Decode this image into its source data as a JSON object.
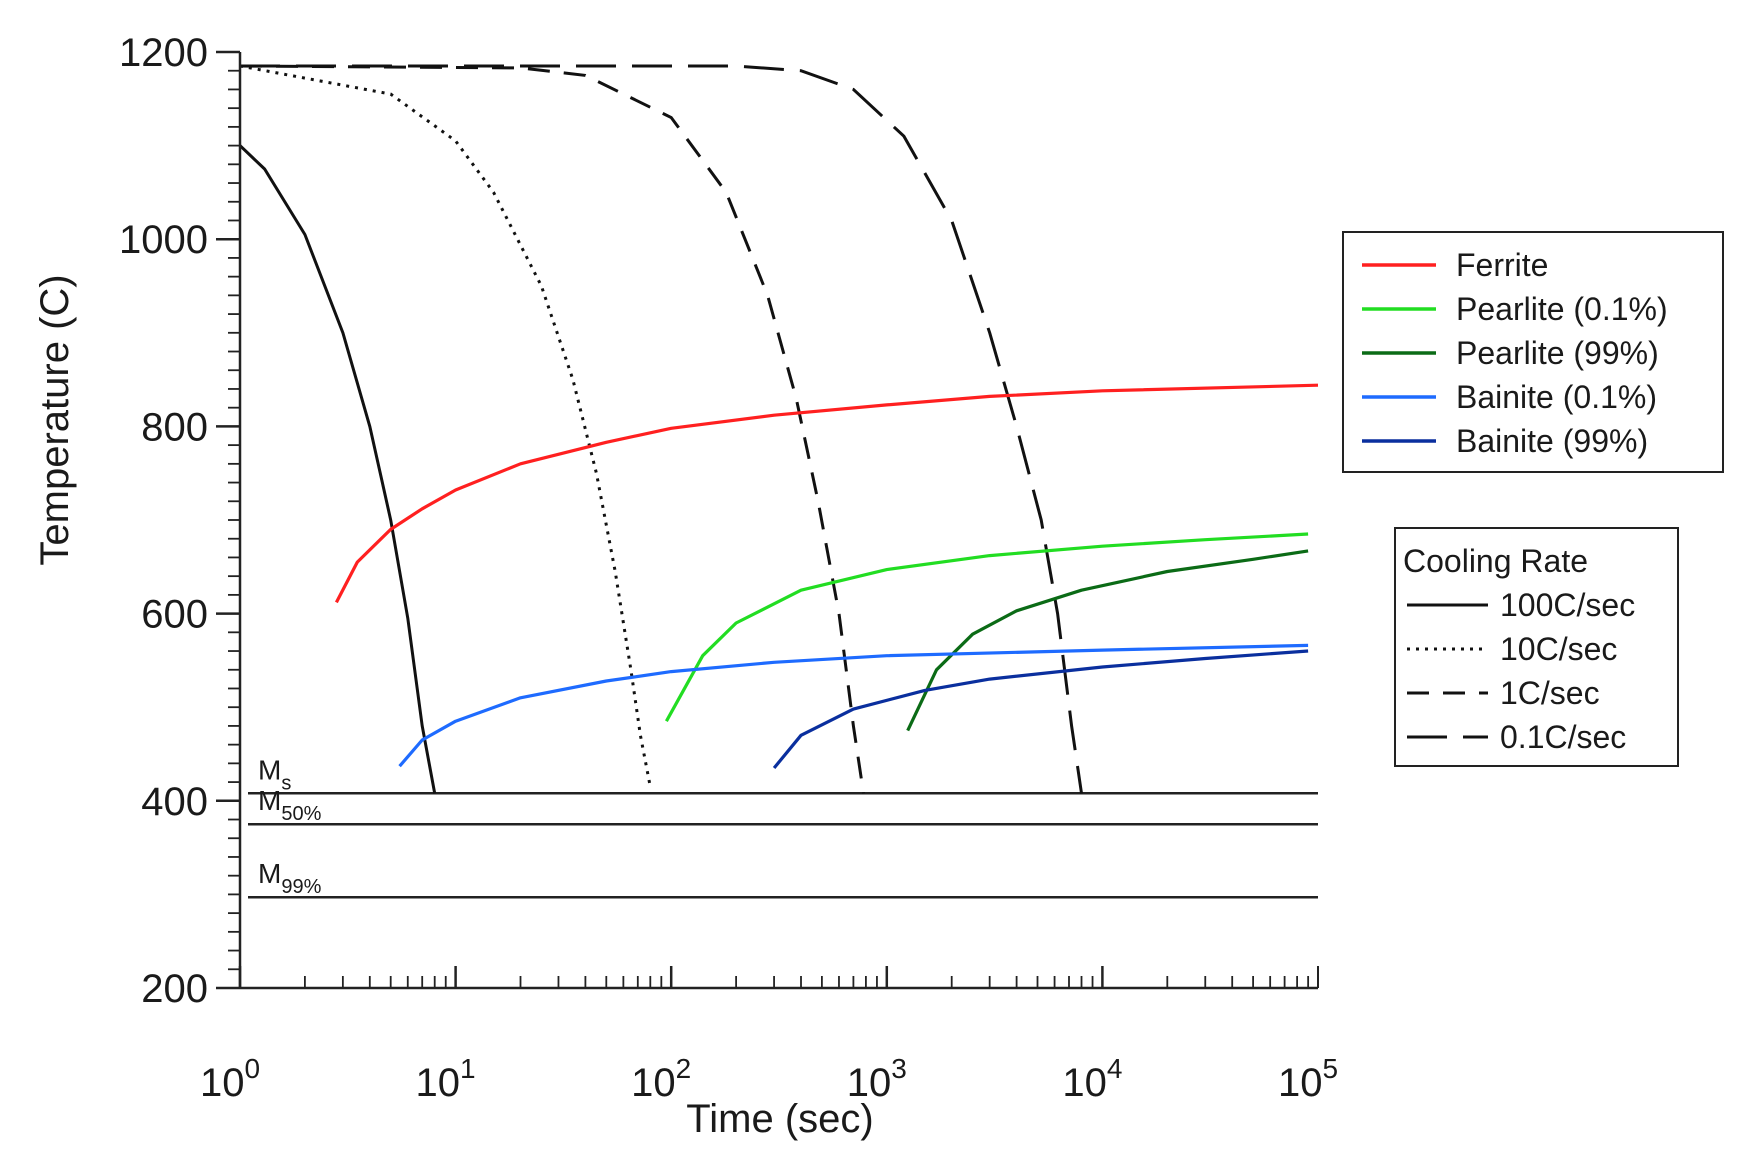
{
  "chart_data": {
    "type": "line",
    "title": "",
    "xlabel": "Time (sec)",
    "ylabel": "Temperature (C)",
    "xscale": "log",
    "xlim": [
      1,
      100000
    ],
    "ylim": [
      200,
      1200
    ],
    "x_ticks": [
      {
        "base": "10",
        "exp": "0"
      },
      {
        "base": "10",
        "exp": "1"
      },
      {
        "base": "10",
        "exp": "2"
      },
      {
        "base": "10",
        "exp": "3"
      },
      {
        "base": "10",
        "exp": "4"
      },
      {
        "base": "10",
        "exp": "5"
      }
    ],
    "y_ticks": [
      "200",
      "400",
      "600",
      "800",
      "1000",
      "1200"
    ],
    "phase_legend": {
      "placement": "right",
      "entries": [
        "Ferrite",
        "Pearlite (0.1%)",
        "Pearlite (99%)",
        "Bainite (0.1%)",
        "Bainite (99%)"
      ]
    },
    "cooling_legend": {
      "title": "Cooling Rate",
      "placement": "right",
      "entries": [
        "100C/sec",
        "10C/sec",
        "1C/sec",
        "0.1C/sec"
      ]
    },
    "phase_series": [
      {
        "name": "Ferrite",
        "color": "#ff2020",
        "points": [
          [
            2.8,
            612
          ],
          [
            3.5,
            655
          ],
          [
            5,
            690
          ],
          [
            7,
            712
          ],
          [
            10,
            732
          ],
          [
            20,
            760
          ],
          [
            50,
            783
          ],
          [
            100,
            798
          ],
          [
            300,
            812
          ],
          [
            1000,
            823
          ],
          [
            3000,
            832
          ],
          [
            10000,
            838
          ],
          [
            100000,
            844
          ]
        ]
      },
      {
        "name": "Pearlite (0.1%)",
        "color": "#22dd22",
        "points": [
          [
            95,
            485
          ],
          [
            140,
            555
          ],
          [
            200,
            590
          ],
          [
            400,
            625
          ],
          [
            1000,
            647
          ],
          [
            3000,
            662
          ],
          [
            10000,
            672
          ],
          [
            30000,
            679
          ],
          [
            90000,
            685
          ]
        ]
      },
      {
        "name": "Pearlite (99%)",
        "color": "#0b6b16",
        "points": [
          [
            1250,
            475
          ],
          [
            1700,
            540
          ],
          [
            2500,
            578
          ],
          [
            4000,
            603
          ],
          [
            8000,
            625
          ],
          [
            20000,
            645
          ],
          [
            50000,
            658
          ],
          [
            90000,
            667
          ]
        ]
      },
      {
        "name": "Bainite (0.1%)",
        "color": "#1e6bff",
        "points": [
          [
            5.5,
            437
          ],
          [
            7,
            465
          ],
          [
            10,
            485
          ],
          [
            20,
            510
          ],
          [
            50,
            528
          ],
          [
            100,
            538
          ],
          [
            300,
            548
          ],
          [
            1000,
            555
          ],
          [
            10000,
            561
          ],
          [
            90000,
            566
          ]
        ]
      },
      {
        "name": "Bainite (99%)",
        "color": "#0a2f9e",
        "points": [
          [
            300,
            435
          ],
          [
            400,
            470
          ],
          [
            700,
            498
          ],
          [
            1500,
            518
          ],
          [
            3000,
            530
          ],
          [
            10000,
            543
          ],
          [
            30000,
            552
          ],
          [
            90000,
            560
          ]
        ]
      }
    ],
    "cooling_series": [
      {
        "name": "100C/sec",
        "dash": "solid",
        "points": [
          [
            1,
            1100
          ],
          [
            1.3,
            1075
          ],
          [
            2,
            1005
          ],
          [
            3,
            900
          ],
          [
            4,
            800
          ],
          [
            5,
            700
          ],
          [
            6,
            595
          ],
          [
            7,
            480
          ],
          [
            8,
            408
          ]
        ]
      },
      {
        "name": "10C/sec",
        "dash": "dotted",
        "points": [
          [
            1,
            1185
          ],
          [
            5,
            1155
          ],
          [
            10,
            1105
          ],
          [
            15,
            1050
          ],
          [
            25,
            950
          ],
          [
            35,
            850
          ],
          [
            45,
            750
          ],
          [
            55,
            645
          ],
          [
            65,
            540
          ],
          [
            72,
            470
          ],
          [
            80,
            415
          ]
        ]
      },
      {
        "name": "1C/sec",
        "dash": "dash",
        "points": [
          [
            1,
            1185
          ],
          [
            20,
            1183
          ],
          [
            40,
            1175
          ],
          [
            100,
            1130
          ],
          [
            180,
            1050
          ],
          [
            280,
            940
          ],
          [
            380,
            830
          ],
          [
            480,
            720
          ],
          [
            600,
            600
          ],
          [
            700,
            480
          ],
          [
            780,
            408
          ]
        ]
      },
      {
        "name": "0.1C/sec",
        "dash": "longdash",
        "points": [
          [
            1,
            1185
          ],
          [
            200,
            1185
          ],
          [
            400,
            1180
          ],
          [
            700,
            1160
          ],
          [
            1200,
            1110
          ],
          [
            2000,
            1020
          ],
          [
            3000,
            900
          ],
          [
            4000,
            800
          ],
          [
            5200,
            700
          ],
          [
            6200,
            600
          ],
          [
            7200,
            480
          ],
          [
            8000,
            408
          ]
        ]
      }
    ],
    "martensite_lines": [
      {
        "base": "M",
        "sub": "s",
        "temperature": 408
      },
      {
        "base": "M",
        "sub": "50%",
        "temperature": 375
      },
      {
        "base": "M",
        "sub": "99%",
        "temperature": 297
      }
    ]
  }
}
